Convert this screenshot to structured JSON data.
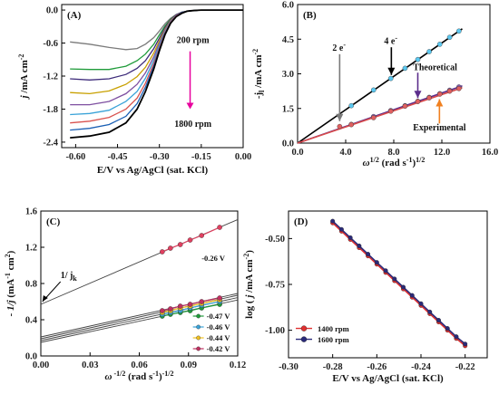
{
  "chart_data": [
    {
      "type": "line",
      "panel_label": "(A)",
      "xlabel": "E/V vs Ag/AgCl (sat. KCl)",
      "ylabel": "j /mA cm-2",
      "xlim": [
        -0.65,
        0.0
      ],
      "ylim": [
        -2.5,
        0.1
      ],
      "xticks": [
        "-0.60",
        "-0.45",
        "-0.30",
        "-0.15",
        "0.00"
      ],
      "xtick_values": [
        -0.6,
        -0.45,
        -0.3,
        -0.15,
        0.0
      ],
      "yticks": [
        "0.0",
        "-0.6",
        "-1.2",
        "-1.8",
        "-2.4"
      ],
      "ytick_values": [
        0.0,
        -0.6,
        -1.2,
        -1.8,
        -2.4
      ],
      "annotations": {
        "top": "200 rpm",
        "bottom": "1800 rpm"
      },
      "arrow_color": "#e8009e",
      "series": [
        {
          "color": "#7a7a7a",
          "x": [
            -0.62,
            -0.55,
            -0.48,
            -0.42,
            -0.38,
            -0.35,
            -0.32,
            -0.3,
            -0.28,
            -0.26,
            -0.24,
            -0.22,
            -0.2,
            -0.18,
            -0.15,
            0.0
          ],
          "y": [
            -0.58,
            -0.62,
            -0.68,
            -0.72,
            -0.7,
            -0.62,
            -0.5,
            -0.38,
            -0.25,
            -0.15,
            -0.08,
            -0.04,
            -0.02,
            -0.01,
            0.0,
            0.0
          ]
        },
        {
          "color": "#1f9b3a",
          "x": [
            -0.62,
            -0.55,
            -0.48,
            -0.42,
            -0.38,
            -0.35,
            -0.32,
            -0.3,
            -0.28,
            -0.26,
            -0.24,
            -0.22,
            -0.2,
            -0.18,
            -0.15,
            0.0
          ],
          "y": [
            -1.07,
            -1.08,
            -1.08,
            -1.02,
            -0.92,
            -0.8,
            -0.62,
            -0.45,
            -0.29,
            -0.17,
            -0.09,
            -0.04,
            -0.02,
            -0.01,
            0.0,
            0.0
          ]
        },
        {
          "color": "#3d2b7a",
          "x": [
            -0.62,
            -0.55,
            -0.48,
            -0.42,
            -0.38,
            -0.35,
            -0.32,
            -0.3,
            -0.28,
            -0.26,
            -0.24,
            -0.22,
            -0.2,
            -0.18,
            -0.15,
            0.0
          ],
          "y": [
            -1.25,
            -1.27,
            -1.25,
            -1.17,
            -1.06,
            -0.92,
            -0.7,
            -0.51,
            -0.32,
            -0.18,
            -0.09,
            -0.04,
            -0.02,
            -0.01,
            0.0,
            0.0
          ]
        },
        {
          "color": "#c8a000",
          "x": [
            -0.62,
            -0.55,
            -0.48,
            -0.42,
            -0.38,
            -0.35,
            -0.32,
            -0.3,
            -0.28,
            -0.26,
            -0.24,
            -0.22,
            -0.2,
            -0.18,
            -0.15,
            0.0
          ],
          "y": [
            -1.5,
            -1.52,
            -1.47,
            -1.35,
            -1.21,
            -1.04,
            -0.78,
            -0.56,
            -0.35,
            -0.19,
            -0.1,
            -0.05,
            -0.02,
            -0.01,
            0.0,
            0.0
          ]
        },
        {
          "color": "#7e4fa0",
          "x": [
            -0.62,
            -0.55,
            -0.48,
            -0.42,
            -0.38,
            -0.35,
            -0.32,
            -0.3,
            -0.28,
            -0.26,
            -0.24,
            -0.22,
            -0.2,
            -0.18,
            -0.15,
            0.0
          ],
          "y": [
            -1.72,
            -1.72,
            -1.66,
            -1.52,
            -1.35,
            -1.14,
            -0.85,
            -0.6,
            -0.37,
            -0.2,
            -0.1,
            -0.05,
            -0.02,
            -0.01,
            0.0,
            0.0
          ]
        },
        {
          "color": "#3aa3d8",
          "x": [
            -0.62,
            -0.55,
            -0.48,
            -0.42,
            -0.38,
            -0.35,
            -0.32,
            -0.3,
            -0.28,
            -0.26,
            -0.24,
            -0.22,
            -0.2,
            -0.18,
            -0.15,
            0.0
          ],
          "y": [
            -1.9,
            -1.88,
            -1.82,
            -1.66,
            -1.48,
            -1.24,
            -0.91,
            -0.64,
            -0.39,
            -0.21,
            -0.11,
            -0.05,
            -0.02,
            -0.01,
            0.0,
            0.0
          ]
        },
        {
          "color": "#d9534f",
          "x": [
            -0.62,
            -0.55,
            -0.48,
            -0.42,
            -0.38,
            -0.35,
            -0.32,
            -0.3,
            -0.28,
            -0.26,
            -0.24,
            -0.22,
            -0.2,
            -0.18,
            -0.15,
            0.0
          ],
          "y": [
            -2.05,
            -2.02,
            -1.95,
            -1.8,
            -1.6,
            -1.33,
            -0.97,
            -0.68,
            -0.41,
            -0.22,
            -0.11,
            -0.05,
            -0.02,
            -0.01,
            0.0,
            0.0
          ]
        },
        {
          "color": "#1a5fb4",
          "x": [
            -0.62,
            -0.55,
            -0.48,
            -0.42,
            -0.38,
            -0.35,
            -0.32,
            -0.3,
            -0.28,
            -0.26,
            -0.24,
            -0.22,
            -0.2,
            -0.18,
            -0.15,
            0.0
          ],
          "y": [
            -2.18,
            -2.15,
            -2.08,
            -1.93,
            -1.7,
            -1.4,
            -1.02,
            -0.71,
            -0.43,
            -0.23,
            -0.12,
            -0.05,
            -0.02,
            -0.01,
            0.0,
            0.0
          ]
        },
        {
          "color": "#000000",
          "x": [
            -0.62,
            -0.55,
            -0.48,
            -0.42,
            -0.38,
            -0.35,
            -0.32,
            -0.3,
            -0.28,
            -0.26,
            -0.24,
            -0.22,
            -0.2,
            -0.18,
            -0.15,
            0.0
          ],
          "y": [
            -2.32,
            -2.29,
            -2.22,
            -2.05,
            -1.8,
            -1.48,
            -1.07,
            -0.74,
            -0.45,
            -0.24,
            -0.12,
            -0.06,
            -0.02,
            -0.01,
            0.0,
            0.0
          ]
        }
      ]
    },
    {
      "type": "scatter",
      "panel_label": "(B)",
      "xlabel": "ω1/2 (rad s-1)1/2",
      "ylabel": "-j1 /mA cm-2",
      "xlim": [
        0,
        16
      ],
      "ylim": [
        0,
        6
      ],
      "xticks": [
        "0.0",
        "4.0",
        "8.0",
        "12.0",
        "16.0"
      ],
      "xtick_values": [
        0,
        4,
        8,
        12,
        16
      ],
      "yticks": [
        "0.0",
        "1.5",
        "3.0",
        "4.5",
        "6.0"
      ],
      "ytick_values": [
        0,
        1.5,
        3.0,
        4.5,
        6.0
      ],
      "annotations": {
        "two_e": "2 e-",
        "four_e": "4 e-",
        "theoretical": "Theoretical",
        "experimental": "Experimental"
      },
      "lines": [
        {
          "name": "4 e- theoretical",
          "color": "#000000",
          "x": [
            0,
            13.7
          ],
          "y": [
            0,
            4.95
          ]
        },
        {
          "name": "2 e- theoretical",
          "color": "#5b2d8c",
          "x": [
            0,
            13.7
          ],
          "y": [
            0,
            2.48
          ]
        },
        {
          "name": "experimental",
          "color": "#d94a4a",
          "x": [
            0,
            13.7
          ],
          "y": [
            0,
            2.4
          ]
        }
      ],
      "series": [
        {
          "name": "4 e- points",
          "color": "#5bc8f0",
          "x": [
            4.47,
            6.32,
            7.75,
            8.94,
            10.0,
            10.95,
            11.83,
            12.65,
            13.42
          ],
          "y": [
            1.62,
            2.3,
            2.8,
            3.24,
            3.62,
            3.96,
            4.28,
            4.58,
            4.85
          ]
        },
        {
          "name": "2 e- points",
          "color": "#7d5bb0",
          "x": [
            4.47,
            6.32,
            7.75,
            8.94,
            10.0,
            10.95,
            11.83,
            12.65,
            13.42
          ],
          "y": [
            0.81,
            1.15,
            1.41,
            1.62,
            1.81,
            1.98,
            2.14,
            2.29,
            2.43
          ]
        },
        {
          "name": "experimental points",
          "color": "#e06060",
          "x": [
            3.5,
            4.47,
            6.32,
            7.75,
            8.94,
            10.0,
            10.95,
            11.83,
            12.65,
            13.42
          ],
          "y": [
            0.72,
            0.8,
            1.1,
            1.38,
            1.6,
            1.8,
            1.96,
            2.12,
            2.25,
            2.36
          ]
        }
      ],
      "arrows": [
        {
          "label": "two_e",
          "color": "#7a7a7a"
        },
        {
          "label": "four_e",
          "color": "#000000"
        },
        {
          "label": "theoretical",
          "color": "#5b2d8c"
        },
        {
          "label": "experimental",
          "color": "#f08020"
        }
      ]
    },
    {
      "type": "scatter",
      "panel_label": "(C)",
      "xlabel": "ω-1/2 (rad s-1)-1/2",
      "ylabel": "- 1/j (mA-1 cm2)",
      "xlim": [
        0,
        0.12
      ],
      "ylim": [
        0,
        1.6
      ],
      "xticks": [
        "0.00",
        "0.03",
        "0.06",
        "0.09",
        "0.12"
      ],
      "xtick_values": [
        0,
        0.03,
        0.06,
        0.09,
        0.12
      ],
      "yticks": [
        "0.0",
        "0.4",
        "0.8",
        "1.2",
        "1.6"
      ],
      "ytick_values": [
        0,
        0.4,
        0.8,
        1.2,
        1.6
      ],
      "annotations": {
        "intercept": "1/ jk",
        "top_series": "-0.26 V"
      },
      "series": [
        {
          "name": "-0.26 V",
          "color": "#e04060",
          "intercept": 0.57,
          "slope": 7.8,
          "x": [
            0.074,
            0.079,
            0.085,
            0.091,
            0.098,
            0.109
          ],
          "y": [
            1.15,
            1.19,
            1.23,
            1.28,
            1.33,
            1.42
          ]
        },
        {
          "name": "-0.47 V",
          "color": "#1f9b3a",
          "intercept": 0.15,
          "slope": 3.9,
          "x": [
            0.074,
            0.079,
            0.085,
            0.091,
            0.098,
            0.109
          ],
          "y": [
            0.44,
            0.46,
            0.48,
            0.5,
            0.53,
            0.57
          ]
        },
        {
          "name": "-0.46 V",
          "color": "#3aa3d8",
          "intercept": 0.17,
          "slope": 3.95,
          "x": [
            0.074,
            0.079,
            0.085,
            0.091,
            0.098,
            0.109
          ],
          "y": [
            0.46,
            0.48,
            0.5,
            0.53,
            0.56,
            0.6
          ]
        },
        {
          "name": "-0.44 V",
          "color": "#f0c020",
          "intercept": 0.19,
          "slope": 4.0,
          "x": [
            0.074,
            0.079,
            0.085,
            0.091,
            0.098,
            0.109
          ],
          "y": [
            0.48,
            0.5,
            0.53,
            0.55,
            0.58,
            0.62
          ]
        },
        {
          "name": "-0.42 V",
          "color": "#c03060",
          "intercept": 0.21,
          "slope": 4.0,
          "x": [
            0.074,
            0.079,
            0.085,
            0.091,
            0.098,
            0.109
          ],
          "y": [
            0.5,
            0.52,
            0.55,
            0.57,
            0.6,
            0.64
          ]
        }
      ],
      "legend_order": [
        "-0.47 V",
        "-0.46 V",
        "-0.44 V",
        "-0.42 V"
      ]
    },
    {
      "type": "line",
      "panel_label": "(D)",
      "xlabel": "E/V vs Ag/AgCl (sat. KCl)",
      "ylabel": "log ( j /mA cm-2)",
      "xlim": [
        -0.3,
        -0.21
      ],
      "ylim": [
        -1.15,
        -0.35
      ],
      "xticks": [
        "-0.30",
        "-0.28",
        "-0.26",
        "-0.24",
        "-0.22"
      ],
      "xtick_values": [
        -0.3,
        -0.28,
        -0.26,
        -0.24,
        -0.22
      ],
      "yticks": [
        "-0.50",
        "-0.75",
        "-1.00"
      ],
      "ytick_values": [
        -0.5,
        -0.75,
        -1.0
      ],
      "series": [
        {
          "name": "1400 rpm",
          "color": "#e03030",
          "x": [
            -0.28,
            -0.276,
            -0.272,
            -0.268,
            -0.264,
            -0.26,
            -0.256,
            -0.252,
            -0.248,
            -0.244,
            -0.24,
            -0.236,
            -0.232,
            -0.228,
            -0.224,
            -0.22
          ],
          "y": [
            -0.415,
            -0.46,
            -0.505,
            -0.55,
            -0.595,
            -0.64,
            -0.685,
            -0.73,
            -0.775,
            -0.82,
            -0.865,
            -0.91,
            -0.955,
            -1.0,
            -1.045,
            -1.085
          ]
        },
        {
          "name": "1600 rpm",
          "color": "#2a2a7a",
          "x": [
            -0.28,
            -0.276,
            -0.272,
            -0.268,
            -0.264,
            -0.26,
            -0.256,
            -0.252,
            -0.248,
            -0.244,
            -0.24,
            -0.236,
            -0.232,
            -0.228,
            -0.224,
            -0.22
          ],
          "y": [
            -0.405,
            -0.45,
            -0.495,
            -0.54,
            -0.585,
            -0.63,
            -0.675,
            -0.72,
            -0.765,
            -0.81,
            -0.855,
            -0.9,
            -0.945,
            -0.99,
            -1.035,
            -1.075
          ]
        }
      ],
      "legend_placement": "bottom-left"
    }
  ]
}
